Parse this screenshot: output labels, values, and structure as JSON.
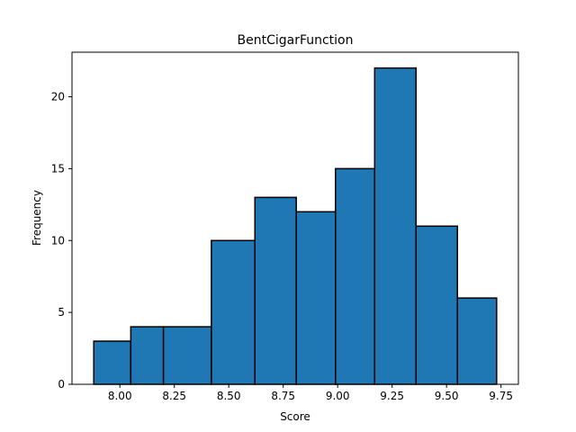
{
  "chart_data": {
    "type": "bar",
    "title": "BentCigarFunction",
    "xlabel": "Score",
    "ylabel": "Frequency",
    "bin_edges": [
      7.88,
      8.05,
      8.2,
      8.42,
      8.62,
      8.81,
      8.99,
      9.17,
      9.36,
      9.55,
      9.73
    ],
    "values": [
      3,
      4,
      4,
      10,
      13,
      12,
      15,
      22,
      11,
      6
    ],
    "xlim": [
      7.78,
      9.83
    ],
    "ylim": [
      0,
      23.1
    ],
    "x_ticks": [
      {
        "value": 8.0,
        "label": "8.00"
      },
      {
        "value": 8.25,
        "label": "8.25"
      },
      {
        "value": 8.5,
        "label": "8.50"
      },
      {
        "value": 8.75,
        "label": "8.75"
      },
      {
        "value": 9.0,
        "label": "9.00"
      },
      {
        "value": 9.25,
        "label": "9.25"
      },
      {
        "value": 9.5,
        "label": "9.50"
      },
      {
        "value": 9.75,
        "label": "9.75"
      }
    ],
    "y_ticks": [
      {
        "value": 0,
        "label": "0"
      },
      {
        "value": 5,
        "label": "5"
      },
      {
        "value": 10,
        "label": "10"
      },
      {
        "value": 15,
        "label": "15"
      },
      {
        "value": 20,
        "label": "20"
      }
    ],
    "bar_color": "#1f77b4",
    "edge_color": "#000000",
    "grid": false,
    "legend": false
  }
}
